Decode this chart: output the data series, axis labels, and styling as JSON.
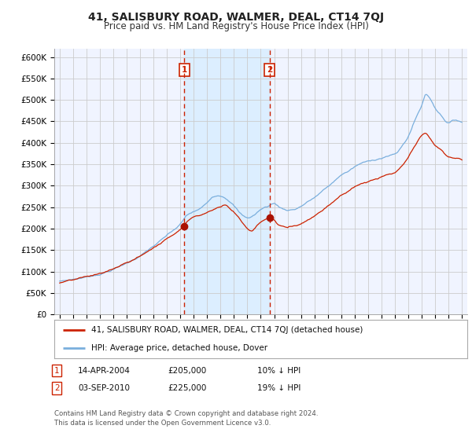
{
  "title": "41, SALISBURY ROAD, WALMER, DEAL, CT14 7QJ",
  "subtitle": "Price paid vs. HM Land Registry's House Price Index (HPI)",
  "title_fontsize": 10,
  "subtitle_fontsize": 8.5,
  "ylabel_ticks": [
    "£0",
    "£50K",
    "£100K",
    "£150K",
    "£200K",
    "£250K",
    "£300K",
    "£350K",
    "£400K",
    "£450K",
    "£500K",
    "£550K",
    "£600K"
  ],
  "ytick_values": [
    0,
    50000,
    100000,
    150000,
    200000,
    250000,
    300000,
    350000,
    400000,
    450000,
    500000,
    550000,
    600000
  ],
  "ylim": [
    0,
    620000
  ],
  "hpi_color": "#7aafdd",
  "price_color": "#cc2200",
  "point_color": "#aa1100",
  "grid_color": "#cccccc",
  "bg_color": "#f0f4ff",
  "shade_color": "#dceeff",
  "vline_color": "#cc2200",
  "annotation_box_color": "#cc2200",
  "transaction1_date_num": 2004.29,
  "transaction1_price": 205000,
  "transaction2_date_num": 2010.67,
  "transaction2_price": 225000,
  "legend_label_price": "41, SALISBURY ROAD, WALMER, DEAL, CT14 7QJ (detached house)",
  "legend_label_hpi": "HPI: Average price, detached house, Dover",
  "note_text": "Contains HM Land Registry data © Crown copyright and database right 2024.\nThis data is licensed under the Open Government Licence v3.0."
}
